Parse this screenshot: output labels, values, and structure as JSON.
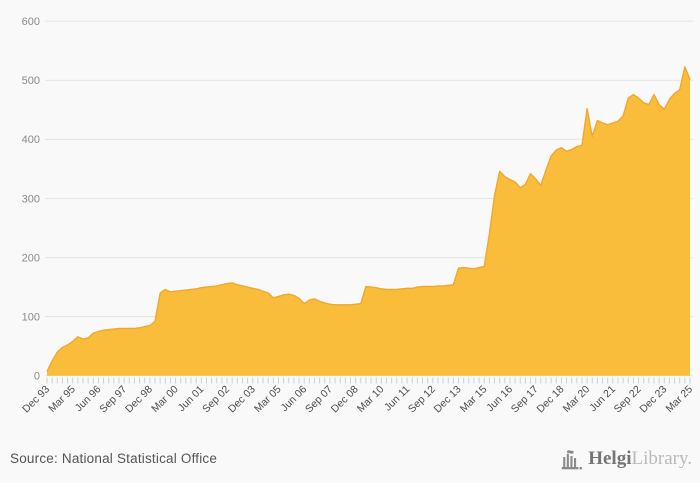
{
  "page": {
    "background": "#f9f9f9"
  },
  "chart_data": {
    "type": "area",
    "title": "",
    "frequency": "quarterly",
    "x_first": "Dec 93",
    "x_last": "Mar 25",
    "tick_labels": [
      "Dec 93",
      "Mar 95",
      "Jun 96",
      "Sep 97",
      "Dec 98",
      "Mar 00",
      "Jun 01",
      "Sep 02",
      "Dec 03",
      "Mar 05",
      "Jun 06",
      "Sep 07",
      "Dec 08",
      "Mar 10",
      "Jun 11",
      "Sep 12",
      "Dec 13",
      "Mar 15",
      "Jun 16",
      "Sep 17",
      "Dec 18",
      "Mar 20",
      "Jun 21",
      "Sep 22",
      "Dec 23",
      "Mar 25"
    ],
    "label_every": 5,
    "values": [
      7,
      25,
      40,
      48,
      52,
      58,
      66,
      62,
      64,
      72,
      75,
      77,
      78,
      79,
      80,
      80,
      80,
      80,
      81,
      83,
      85,
      92,
      140,
      146,
      142,
      143,
      144,
      145,
      146,
      147,
      149,
      150,
      151,
      152,
      154,
      156,
      157,
      154,
      152,
      150,
      148,
      146,
      143,
      140,
      132,
      134,
      137,
      138,
      136,
      131,
      122,
      128,
      130,
      126,
      123,
      121,
      120,
      120,
      120,
      120,
      121,
      122,
      151,
      150,
      149,
      147,
      146,
      146,
      146,
      147,
      148,
      148,
      150,
      151,
      151,
      151,
      152,
      152,
      153,
      154,
      182,
      183,
      182,
      181,
      183,
      185,
      240,
      305,
      346,
      337,
      332,
      328,
      318,
      324,
      342,
      333,
      322,
      348,
      372,
      382,
      386,
      380,
      383,
      388,
      390,
      452,
      405,
      432,
      428,
      425,
      428,
      431,
      440,
      470,
      476,
      470,
      462,
      459,
      476,
      459,
      451,
      468,
      478,
      484,
      523,
      501
    ],
    "ylim": [
      0,
      600
    ],
    "y_ticks": [
      0,
      100,
      200,
      300,
      400,
      500,
      600
    ],
    "grid": true,
    "legend": false
  },
  "chart_style": {
    "area_fill": "#F9BD3B",
    "area_stroke": "#F0A72F",
    "grid_color": "#e6e6e6",
    "axis_tick_color": "#c7d0e2",
    "x_label_color": "#4d4d4d",
    "y_label_color": "#8a8a8a"
  },
  "footer": {
    "source": "Source: National Statistical Office",
    "logo": {
      "icon": "castle-icon",
      "brand_primary": "Helgi",
      "brand_secondary": "Library."
    }
  }
}
